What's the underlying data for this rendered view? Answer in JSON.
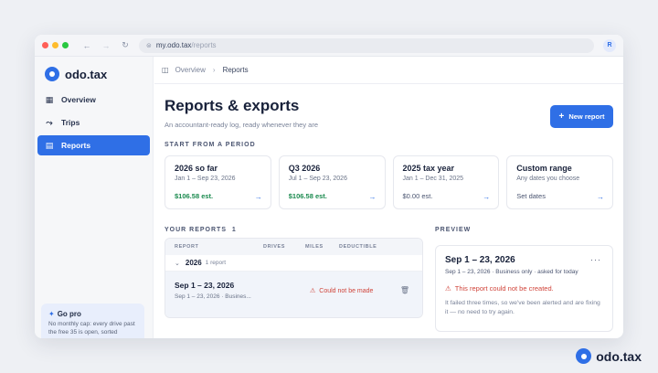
{
  "browser": {
    "url_host": "my.odo.tax",
    "url_path": "/reports",
    "avatar_initial": "R",
    "dot_colors": [
      "#ff5f57",
      "#febc2e",
      "#28c840"
    ]
  },
  "brand": {
    "name": "odo.tax",
    "color": "#2f6fe6"
  },
  "sidebar": {
    "items": [
      {
        "label": "Overview",
        "icon": "grid-icon",
        "active": false
      },
      {
        "label": "Trips",
        "icon": "route-icon",
        "active": false
      },
      {
        "label": "Reports",
        "icon": "document-icon",
        "active": true
      }
    ],
    "gopro": {
      "title": "Go pro",
      "text": "No monthly cap: every drive past the free 35 is open, sorted"
    }
  },
  "breadcrumb": {
    "items": [
      "Overview",
      "Reports"
    ]
  },
  "page": {
    "title": "Reports & exports",
    "subtitle": "An accountant-ready log, ready whenever they are",
    "new_button": "New report"
  },
  "periods": {
    "label": "START FROM A PERIOD",
    "cards": [
      {
        "title": "2026 so far",
        "range": "Jan 1 – Sep 23, 2026",
        "estimate": "$106.58 est."
      },
      {
        "title": "Q3 2026",
        "range": "Jul 1 – Sep 23, 2026",
        "estimate": "$106.58 est."
      },
      {
        "title": "2025 tax year",
        "range": "Jan 1 – Dec 31, 2025",
        "estimate": "$0.00 est."
      },
      {
        "title": "Custom range",
        "range": "Any dates you choose",
        "estimate": "Set dates"
      }
    ]
  },
  "reports": {
    "label": "YOUR REPORTS",
    "count": "1",
    "columns": [
      "REPORT",
      "DRIVES",
      "MILES",
      "DEDUCTIBLE"
    ],
    "group": {
      "year": "2026",
      "count": "1 report"
    },
    "row": {
      "title": "Sep 1 – 23, 2026",
      "subtitle": "Sep 1 – 23, 2026 · Busines...",
      "status": "Could not be made"
    }
  },
  "preview": {
    "label": "PREVIEW",
    "title": "Sep 1 – 23, 2026",
    "subtitle": "Sep 1 – 23, 2026 · Business only · asked for today",
    "error": "This report could not be created.",
    "message": "It failed three times, so we've been alerted and are fixing it — no need to try again."
  }
}
